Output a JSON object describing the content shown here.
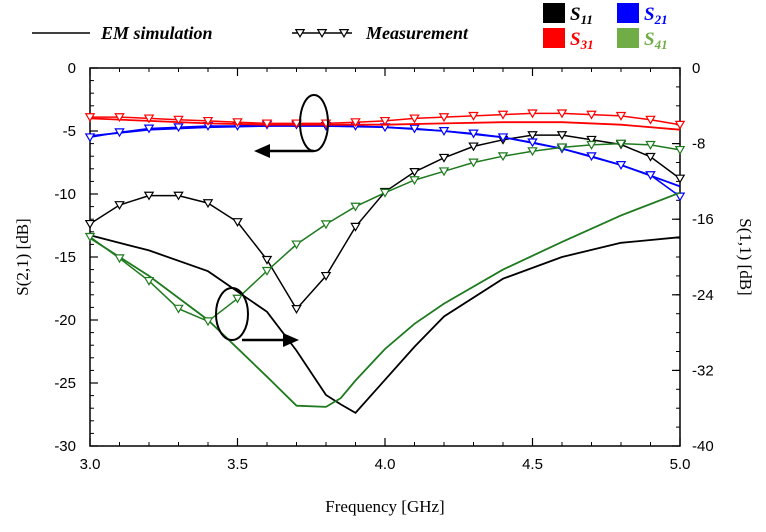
{
  "chart_data": {
    "type": "line",
    "xlabel": "Frequency [GHz]",
    "ylabel_left": "S(2,1) [dB]",
    "ylabel_right": "S(1,1) [dB]",
    "xlim": [
      3.0,
      5.0
    ],
    "ylim_left": [
      -30,
      0
    ],
    "ylim_right": [
      -40,
      0
    ],
    "x_ticks": [
      "3.0",
      "3.5",
      "4.0",
      "4.5",
      "5.0"
    ],
    "y_ticks_left": [
      "0",
      "-5",
      "-10",
      "-15",
      "-20",
      "-25",
      "-30"
    ],
    "y_ticks_right": [
      "0",
      "-8",
      "-16",
      "-24",
      "-32",
      "-40"
    ],
    "grid": false,
    "legend": {
      "em_simulation_label": "EM simulation",
      "measurement_label": "Measurement",
      "swatches": [
        {
          "sym": "S",
          "sub": "11",
          "color": "#000000"
        },
        {
          "sym": "S",
          "sub": "21",
          "color": "#0000ff"
        },
        {
          "sym": "S",
          "sub": "31",
          "color": "#ff0000"
        },
        {
          "sym": "S",
          "sub": "41",
          "color": "#70ad47"
        }
      ]
    },
    "series": [
      {
        "param": "S11",
        "kind": "simulation",
        "axis": "right",
        "color": "#000000",
        "x": [
          3.0,
          3.2,
          3.4,
          3.6,
          3.7,
          3.8,
          3.85,
          3.9,
          4.0,
          4.1,
          4.2,
          4.4,
          4.6,
          4.8,
          5.0
        ],
        "y": [
          -17.7,
          -19.3,
          -21.5,
          -25.8,
          -29.9,
          -34.6,
          -35.6,
          -36.5,
          -33.0,
          -29.5,
          -26.3,
          -22.3,
          -20.0,
          -18.5,
          -17.9
        ]
      },
      {
        "param": "S11",
        "kind": "measurement",
        "axis": "right",
        "color": "#000000",
        "x": [
          3.0,
          3.1,
          3.2,
          3.3,
          3.4,
          3.5,
          3.6,
          3.7,
          3.8,
          3.9,
          4.0,
          4.1,
          4.2,
          4.3,
          4.4,
          4.5,
          4.6,
          4.7,
          4.8,
          4.9,
          5.0
        ],
        "y": [
          -16.5,
          -14.5,
          -13.5,
          -13.5,
          -14.3,
          -16.3,
          -20.3,
          -25.5,
          -22.0,
          -16.8,
          -13.1,
          -11.0,
          -9.5,
          -8.3,
          -7.6,
          -7.1,
          -7.1,
          -7.6,
          -8.1,
          -9.4,
          -11.7
        ]
      },
      {
        "param": "S21",
        "kind": "simulation",
        "axis": "left",
        "color": "#0000ff",
        "x": [
          3.0,
          3.2,
          3.4,
          3.6,
          3.8,
          4.0,
          4.2,
          4.4,
          4.6,
          4.8,
          5.0
        ],
        "y": [
          -5.4,
          -4.9,
          -4.7,
          -4.6,
          -4.6,
          -4.7,
          -5.0,
          -5.5,
          -6.4,
          -7.7,
          -9.4
        ]
      },
      {
        "param": "S21",
        "kind": "measurement",
        "axis": "left",
        "color": "#0000ff",
        "x": [
          3.0,
          3.1,
          3.2,
          3.3,
          3.4,
          3.5,
          3.6,
          3.7,
          3.8,
          3.9,
          4.0,
          4.1,
          4.2,
          4.3,
          4.4,
          4.5,
          4.6,
          4.7,
          4.8,
          4.9,
          5.0
        ],
        "y": [
          -5.5,
          -5.1,
          -4.8,
          -4.7,
          -4.6,
          -4.6,
          -4.5,
          -4.5,
          -4.6,
          -4.6,
          -4.7,
          -4.8,
          -5.0,
          -5.2,
          -5.5,
          -5.9,
          -6.4,
          -7.0,
          -7.7,
          -8.5,
          -10.2
        ]
      },
      {
        "param": "S31",
        "kind": "simulation",
        "axis": "left",
        "color": "#ff0000",
        "x": [
          3.0,
          3.2,
          3.4,
          3.6,
          3.8,
          4.0,
          4.2,
          4.4,
          4.6,
          4.8,
          5.0
        ],
        "y": [
          -4.0,
          -4.2,
          -4.4,
          -4.5,
          -4.5,
          -4.5,
          -4.4,
          -4.3,
          -4.3,
          -4.5,
          -4.9
        ]
      },
      {
        "param": "S31",
        "kind": "measurement",
        "axis": "left",
        "color": "#ff0000",
        "x": [
          3.0,
          3.1,
          3.2,
          3.3,
          3.4,
          3.5,
          3.6,
          3.7,
          3.8,
          3.9,
          4.0,
          4.1,
          4.2,
          4.3,
          4.4,
          4.5,
          4.6,
          4.7,
          4.8,
          4.9,
          5.0
        ],
        "y": [
          -3.9,
          -3.9,
          -4.0,
          -4.1,
          -4.2,
          -4.3,
          -4.4,
          -4.4,
          -4.4,
          -4.3,
          -4.2,
          -4.0,
          -3.9,
          -3.8,
          -3.7,
          -3.6,
          -3.6,
          -3.7,
          -3.8,
          -4.1,
          -4.5
        ]
      },
      {
        "param": "S41",
        "kind": "simulation",
        "axis": "left",
        "color": "#1e7a1e",
        "x": [
          3.0,
          3.2,
          3.4,
          3.6,
          3.7,
          3.8,
          3.85,
          3.9,
          4.0,
          4.1,
          4.2,
          4.4,
          4.6,
          4.8,
          5.0
        ],
        "y": [
          -13.5,
          -16.5,
          -20.0,
          -24.5,
          -26.8,
          -26.9,
          -26.2,
          -24.8,
          -22.3,
          -20.3,
          -18.7,
          -16.0,
          -13.8,
          -11.7,
          -9.9
        ]
      },
      {
        "param": "S41",
        "kind": "measurement",
        "axis": "left",
        "color": "#1e7a1e",
        "x": [
          3.0,
          3.1,
          3.2,
          3.3,
          3.4,
          3.5,
          3.6,
          3.7,
          3.8,
          3.9,
          4.0,
          4.1,
          4.2,
          4.3,
          4.4,
          4.5,
          4.6,
          4.7,
          4.8,
          4.9,
          5.0
        ],
        "y": [
          -13.4,
          -15.1,
          -16.9,
          -19.1,
          -20.1,
          -18.3,
          -16.1,
          -14.0,
          -12.4,
          -11.0,
          -9.9,
          -8.9,
          -8.2,
          -7.5,
          -7.0,
          -6.6,
          -6.3,
          -6.1,
          -6.0,
          -6.1,
          -6.5
        ]
      }
    ]
  }
}
